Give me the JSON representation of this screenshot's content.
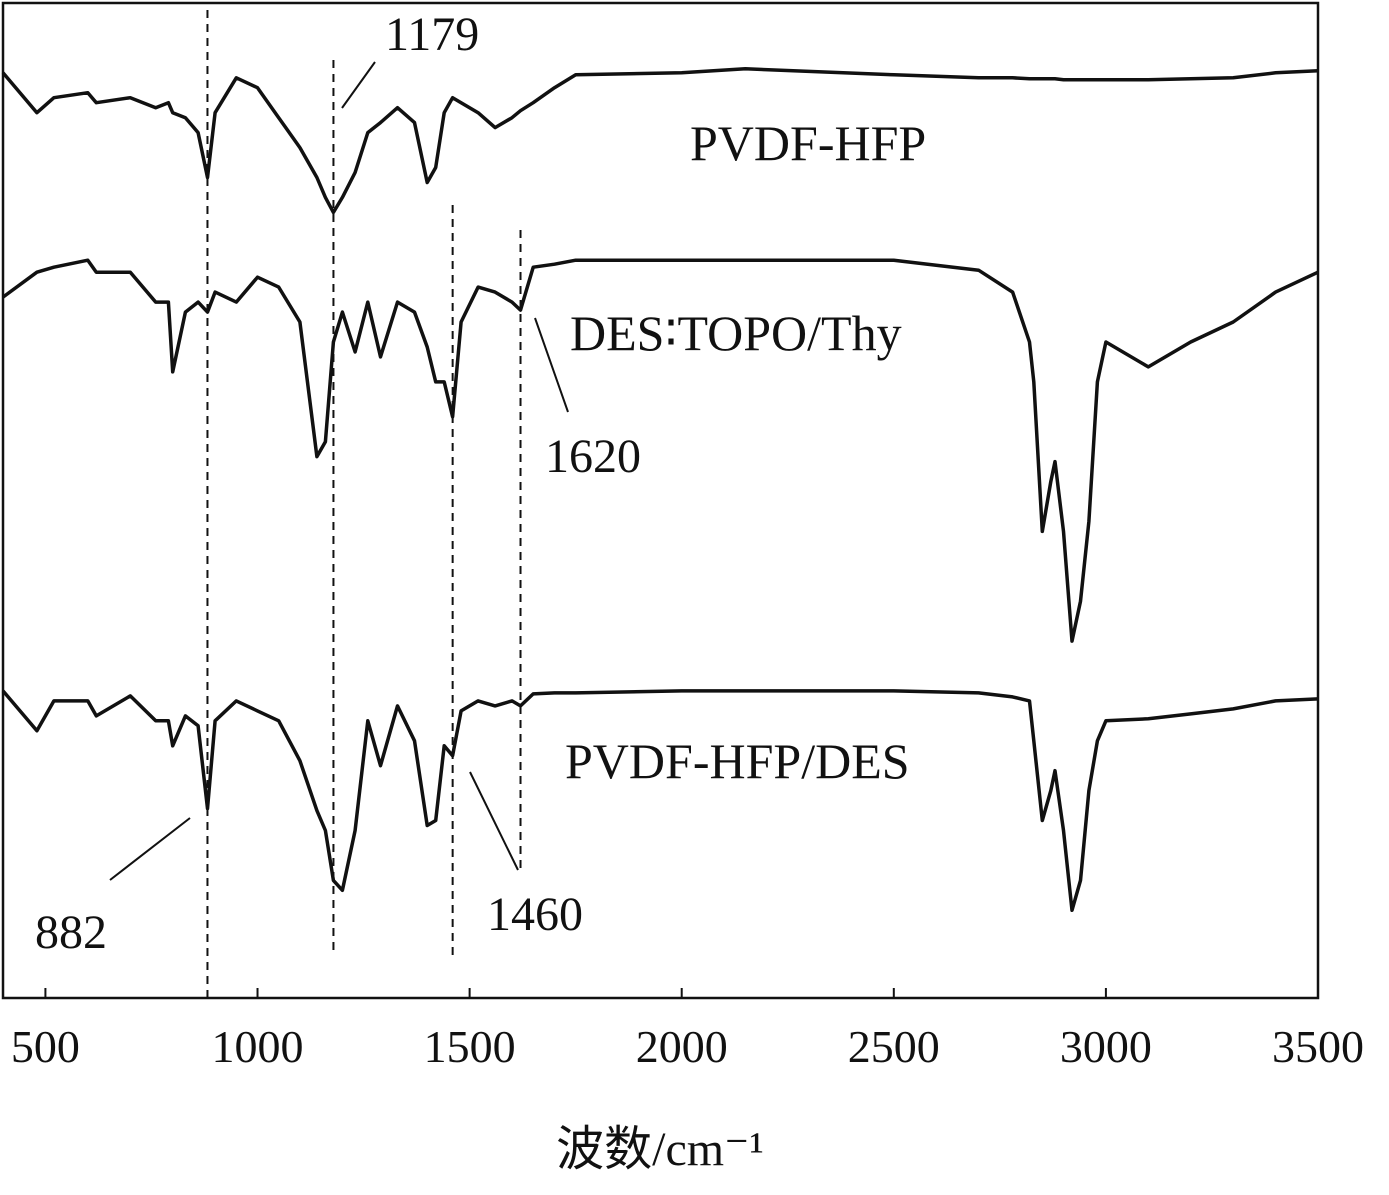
{
  "chart_data": {
    "type": "line",
    "xlabel": "波数/cm⁻¹",
    "x": [
      400,
      480,
      520,
      600,
      620,
      700,
      760,
      790,
      800,
      830,
      860,
      882,
      900,
      950,
      1000,
      1050,
      1100,
      1140,
      1160,
      1179,
      1200,
      1230,
      1260,
      1290,
      1330,
      1370,
      1400,
      1420,
      1440,
      1460,
      1480,
      1520,
      1560,
      1600,
      1620,
      1650,
      1700,
      1750,
      2000,
      2150,
      2500,
      2700,
      2780,
      2820,
      2830,
      2850,
      2870,
      2880,
      2900,
      2920,
      2940,
      2960,
      2980,
      3000,
      3100,
      3200,
      3300,
      3400,
      3500
    ],
    "series": [
      {
        "name": "PVDF-HFP",
        "color": "#111111",
        "values": [
          928,
          888,
          903,
          908,
          898,
          903,
          893,
          898,
          888,
          883,
          868,
          823,
          888,
          923,
          913,
          883,
          853,
          823,
          803,
          788,
          803,
          828,
          868,
          878,
          893,
          878,
          818,
          833,
          888,
          903,
          898,
          888,
          873,
          883,
          890,
          898,
          913,
          926,
          928,
          932,
          926,
          923,
          923,
          922,
          922,
          922,
          922,
          922,
          921,
          921,
          921,
          921,
          921,
          921,
          921,
          922,
          923,
          928,
          930
        ]
      },
      {
        "name": "DES∶TOPO/Thy",
        "color": "#111111",
        "values": [
          703,
          728,
          733,
          740,
          728,
          728,
          698,
          698,
          628,
          688,
          698,
          688,
          708,
          698,
          723,
          713,
          678,
          543,
          558,
          658,
          688,
          648,
          698,
          643,
          698,
          688,
          653,
          618,
          618,
          583,
          678,
          713,
          708,
          698,
          690,
          733,
          736,
          740,
          740,
          740,
          740,
          730,
          708,
          658,
          618,
          468,
          518,
          538,
          468,
          358,
          398,
          478,
          618,
          658,
          633,
          658,
          678,
          708,
          728
        ]
      },
      {
        "name": "PVDF-HFP/DES",
        "color": "#111111",
        "values": [
          308,
          268,
          298,
          298,
          283,
          303,
          278,
          278,
          253,
          283,
          273,
          190,
          278,
          298,
          288,
          278,
          238,
          188,
          168,
          118,
          108,
          168,
          278,
          233,
          293,
          258,
          173,
          178,
          253,
          243,
          288,
          298,
          293,
          298,
          293,
          305,
          306,
          306,
          308,
          308,
          308,
          306,
          302,
          298,
          258,
          178,
          208,
          228,
          168,
          88,
          118,
          208,
          258,
          278,
          280,
          285,
          290,
          298,
          300
        ]
      }
    ],
    "annotations": [
      882,
      1179,
      1460,
      1620
    ],
    "xlim": [
      400,
      3500
    ],
    "xticks": [
      500,
      1000,
      1500,
      2000,
      2500,
      3000,
      3500
    ],
    "ylim": [
      0,
      998
    ]
  }
}
